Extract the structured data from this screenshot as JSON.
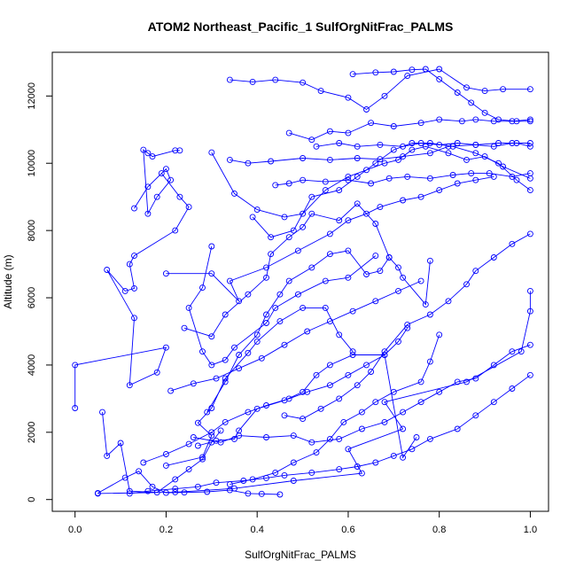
{
  "chart_data": {
    "type": "line",
    "title": "ATOM2 Northeast_Pacific_1 SulfOrgNitFrac_PALMS",
    "xlabel": "SulfOrgNitFrac_PALMS",
    "ylabel": "Altitude (m)",
    "xlim": [
      -0.05,
      1.04
    ],
    "ylim": [
      -350,
      13300
    ],
    "xticks": [
      0.0,
      0.2,
      0.4,
      0.6,
      0.8,
      1.0
    ],
    "xtick_labels": [
      "0.0",
      "0.2",
      "0.4",
      "0.6",
      "0.8",
      "1.0"
    ],
    "yticks": [
      0,
      2000,
      4000,
      6000,
      8000,
      10000,
      12000
    ],
    "ytick_labels": [
      "0",
      "2000",
      "4000",
      "6000",
      "8000",
      "10000",
      "12000"
    ],
    "grid": false,
    "legend": "none",
    "marker": "open-circle",
    "color": "#0000ff",
    "series": [
      {
        "x": [
          0.05,
          0.22,
          0.35,
          0.48,
          0.63,
          0.6,
          0.72,
          0.68,
          0.86,
          0.98,
          1.0,
          1.0
        ],
        "y": [
          180,
          220,
          330,
          560,
          780,
          1500,
          2100,
          2900,
          3500,
          4400,
          5600,
          6200
        ]
      },
      {
        "x": [
          0.0,
          0.0,
          0.2,
          0.18,
          0.12,
          0.13,
          0.07,
          0.11,
          0.13,
          0.12,
          0.13,
          0.22,
          0.25,
          0.23,
          0.19
        ],
        "y": [
          2720,
          4000,
          4520,
          3780,
          3400,
          5400,
          6830,
          6200,
          6280,
          7000,
          7250,
          8000,
          8700,
          9000,
          9700
        ]
      },
      {
        "x": [
          0.13,
          0.16,
          0.2,
          0.21,
          0.18,
          0.16,
          0.15,
          0.16,
          0.17,
          0.22,
          0.23
        ],
        "y": [
          8660,
          9300,
          9830,
          9500,
          9000,
          8500,
          10400,
          10300,
          10200,
          10380,
          10380
        ]
      },
      {
        "x": [
          0.05,
          0.11,
          0.14,
          0.17,
          0.2,
          0.24,
          0.29,
          0.34,
          0.38,
          0.41,
          0.45
        ],
        "y": [
          190,
          650,
          840,
          380,
          200,
          210,
          230,
          280,
          180,
          170,
          150
        ]
      },
      {
        "x": [
          0.06,
          0.07,
          0.1,
          0.12,
          0.18,
          0.22,
          0.25,
          0.28,
          0.3,
          0.32
        ],
        "y": [
          2600,
          1300,
          1680,
          250,
          210,
          600,
          900,
          1200,
          1700,
          2050
        ]
      },
      {
        "x": [
          0.2,
          0.28,
          0.3,
          0.27,
          0.3,
          0.33,
          0.38,
          0.4,
          0.45,
          0.5,
          0.55,
          0.58,
          0.61
        ],
        "y": [
          1010,
          1260,
          1900,
          2280,
          2720,
          3600,
          4360,
          4700,
          5300,
          5700,
          5700,
          4900,
          4400
        ]
      },
      {
        "x": [
          0.27,
          0.31,
          0.35,
          0.36,
          0.4,
          0.46,
          0.5,
          0.53,
          0.56,
          0.61,
          0.68,
          0.71,
          0.73
        ],
        "y": [
          1600,
          1750,
          1800,
          2050,
          2700,
          2950,
          3200,
          3700,
          4000,
          4300,
          4300,
          4700,
          5100
        ]
      },
      {
        "x": [
          0.34,
          0.39,
          0.44,
          0.48,
          0.53,
          0.56,
          0.59,
          0.63,
          0.66,
          0.7,
          0.76,
          0.78,
          0.8
        ],
        "y": [
          450,
          600,
          800,
          1100,
          1400,
          1800,
          2300,
          2600,
          2900,
          3200,
          3500,
          4100,
          4900
        ]
      },
      {
        "x": [
          0.29,
          0.33,
          0.36,
          0.4,
          0.42,
          0.45,
          0.47,
          0.52,
          0.56,
          0.6,
          0.64,
          0.67,
          0.69
        ],
        "y": [
          2600,
          3500,
          4300,
          4900,
          5500,
          6100,
          6500,
          6900,
          7300,
          7400,
          6700,
          6800,
          7200
        ]
      },
      {
        "x": [
          0.24,
          0.3,
          0.33,
          0.38,
          0.42,
          0.43,
          0.47,
          0.5,
          0.52,
          0.58,
          0.62,
          0.66,
          0.69,
          0.71,
          0.72,
          0.77,
          0.78
        ],
        "y": [
          5100,
          4850,
          5500,
          6100,
          6600,
          7300,
          7800,
          8100,
          8500,
          8300,
          8800,
          8200,
          7200,
          6900,
          6600,
          5800,
          7100
        ]
      },
      {
        "x": [
          0.3,
          0.28,
          0.25,
          0.28,
          0.3,
          0.33,
          0.35,
          0.42,
          0.44,
          0.49,
          0.55,
          0.6,
          0.66
        ],
        "y": [
          7530,
          6300,
          5700,
          4400,
          4000,
          4150,
          4520,
          5250,
          5700,
          6100,
          6500,
          6600,
          7250
        ]
      },
      {
        "x": [
          0.2,
          0.3,
          0.36,
          0.34,
          0.42,
          0.49,
          0.56,
          0.6,
          0.64,
          0.67,
          0.72,
          0.76,
          0.8,
          0.84,
          0.88,
          0.92
        ],
        "y": [
          6720,
          6720,
          5900,
          6500,
          6900,
          7400,
          7900,
          8300,
          8500,
          8700,
          8900,
          9000,
          9200,
          9400,
          9500,
          9600
        ]
      },
      {
        "x": [
          0.3,
          0.35,
          0.4,
          0.46,
          0.5,
          0.55,
          0.6,
          0.64,
          0.68,
          0.71,
          0.74,
          0.77,
          0.82,
          0.86,
          0.9,
          0.94,
          1.0
        ],
        "y": [
          10320,
          9100,
          8620,
          8400,
          8500,
          9200,
          9600,
          9800,
          10000,
          10100,
          10400,
          10500,
          10300,
          10100,
          10200,
          9900,
          9550
        ]
      },
      {
        "x": [
          0.34,
          0.38,
          0.43,
          0.5,
          0.56,
          0.62,
          0.67,
          0.72,
          0.78,
          0.82,
          0.88,
          0.93,
          0.97,
          1.0
        ],
        "y": [
          10100,
          10000,
          10060,
          10150,
          10100,
          10150,
          10120,
          10200,
          10300,
          10500,
          10550,
          10600,
          10600,
          10500
        ]
      },
      {
        "x": [
          0.44,
          0.47,
          0.5,
          0.55,
          0.6,
          0.65,
          0.69,
          0.73,
          0.78,
          0.83,
          0.87,
          0.91,
          0.96,
          1.0
        ],
        "y": [
          9350,
          9400,
          9500,
          9450,
          9500,
          9400,
          9550,
          9600,
          9550,
          9650,
          9700,
          9700,
          9600,
          9700
        ]
      },
      {
        "x": [
          0.47,
          0.52,
          0.56,
          0.6,
          0.65,
          0.7,
          0.76,
          0.8,
          0.85,
          0.88,
          0.92,
          0.96,
          1.0
        ],
        "y": [
          10900,
          10700,
          10950,
          10900,
          11200,
          11100,
          11200,
          11300,
          11250,
          11300,
          11250,
          11250,
          11300
        ]
      },
      {
        "x": [
          0.53,
          0.58,
          0.62,
          0.67,
          0.72,
          0.76,
          0.8,
          0.84,
          0.88,
          0.92,
          0.96,
          1.0
        ],
        "y": [
          10500,
          10600,
          10500,
          10550,
          10500,
          10600,
          10550,
          10600,
          10550,
          10500,
          10600,
          10600
        ]
      },
      {
        "x": [
          0.34,
          0.39,
          0.44,
          0.5,
          0.54,
          0.6,
          0.64,
          0.68,
          0.73,
          0.8,
          0.86,
          0.9,
          0.94,
          1.0
        ],
        "y": [
          12480,
          12420,
          12480,
          12400,
          12150,
          11950,
          11600,
          12000,
          12600,
          12800,
          12250,
          12150,
          12200,
          12200
        ]
      },
      {
        "x": [
          0.61,
          0.66,
          0.7,
          0.74,
          0.77,
          0.8,
          0.84,
          0.87,
          0.9,
          0.93,
          0.97,
          1.0
        ],
        "y": [
          12650,
          12700,
          12720,
          12780,
          12800,
          12500,
          12100,
          11800,
          11500,
          11300,
          11250,
          11250
        ]
      },
      {
        "x": [
          0.39,
          0.43,
          0.48,
          0.52,
          0.58,
          0.62,
          0.66,
          0.7,
          0.74,
          0.78,
          0.83,
          0.88,
          0.93,
          0.97,
          1.0
        ],
        "y": [
          8400,
          7800,
          8000,
          9000,
          9200,
          9600,
          10000,
          10400,
          10600,
          10600,
          10500,
          10300,
          10000,
          9500,
          9200
        ]
      },
      {
        "x": [
          0.26,
          0.32,
          0.36,
          0.42,
          0.48,
          0.52,
          0.58,
          0.63,
          0.68,
          0.72,
          0.76,
          0.8,
          0.84,
          0.88,
          0.92,
          0.96,
          1.0
        ],
        "y": [
          1850,
          1700,
          1900,
          1850,
          1900,
          1700,
          1800,
          2100,
          2300,
          2600,
          2900,
          3200,
          3500,
          3600,
          4000,
          4400,
          4600
        ]
      },
      {
        "x": [
          0.46,
          0.5,
          0.54,
          0.58,
          0.62,
          0.65,
          0.68,
          0.73,
          0.78,
          0.82,
          0.86,
          0.88,
          0.92,
          0.96,
          1.0
        ],
        "y": [
          2500,
          2400,
          2700,
          3000,
          3400,
          3800,
          4400,
          5200,
          5500,
          5900,
          6400,
          6800,
          7200,
          7600,
          7900
        ]
      },
      {
        "x": [
          0.15,
          0.2,
          0.25,
          0.3,
          0.33,
          0.38,
          0.42,
          0.47,
          0.51,
          0.56,
          0.6,
          0.64,
          0.68,
          0.72,
          0.75
        ],
        "y": [
          1100,
          1350,
          1650,
          2000,
          2300,
          2600,
          2800,
          3000,
          3200,
          3400,
          3700,
          4000,
          4300,
          1250,
          1850
        ]
      },
      {
        "x": [
          0.12,
          0.16,
          0.22,
          0.27,
          0.31,
          0.37,
          0.42,
          0.46,
          0.52,
          0.58,
          0.62,
          0.66,
          0.7,
          0.74,
          0.78,
          0.84,
          0.88,
          0.92,
          0.96,
          1.0
        ],
        "y": [
          180,
          250,
          320,
          380,
          500,
          560,
          640,
          720,
          800,
          900,
          980,
          1100,
          1300,
          1500,
          1800,
          2100,
          2500,
          2900,
          3300,
          3700
        ]
      },
      {
        "x": [
          0.21,
          0.26,
          0.31,
          0.36,
          0.41,
          0.46,
          0.51,
          0.56,
          0.61,
          0.66,
          0.71,
          0.76
        ],
        "y": [
          3230,
          3450,
          3600,
          3900,
          4200,
          4600,
          5000,
          5300,
          5600,
          5900,
          6200,
          6500
        ]
      }
    ]
  }
}
